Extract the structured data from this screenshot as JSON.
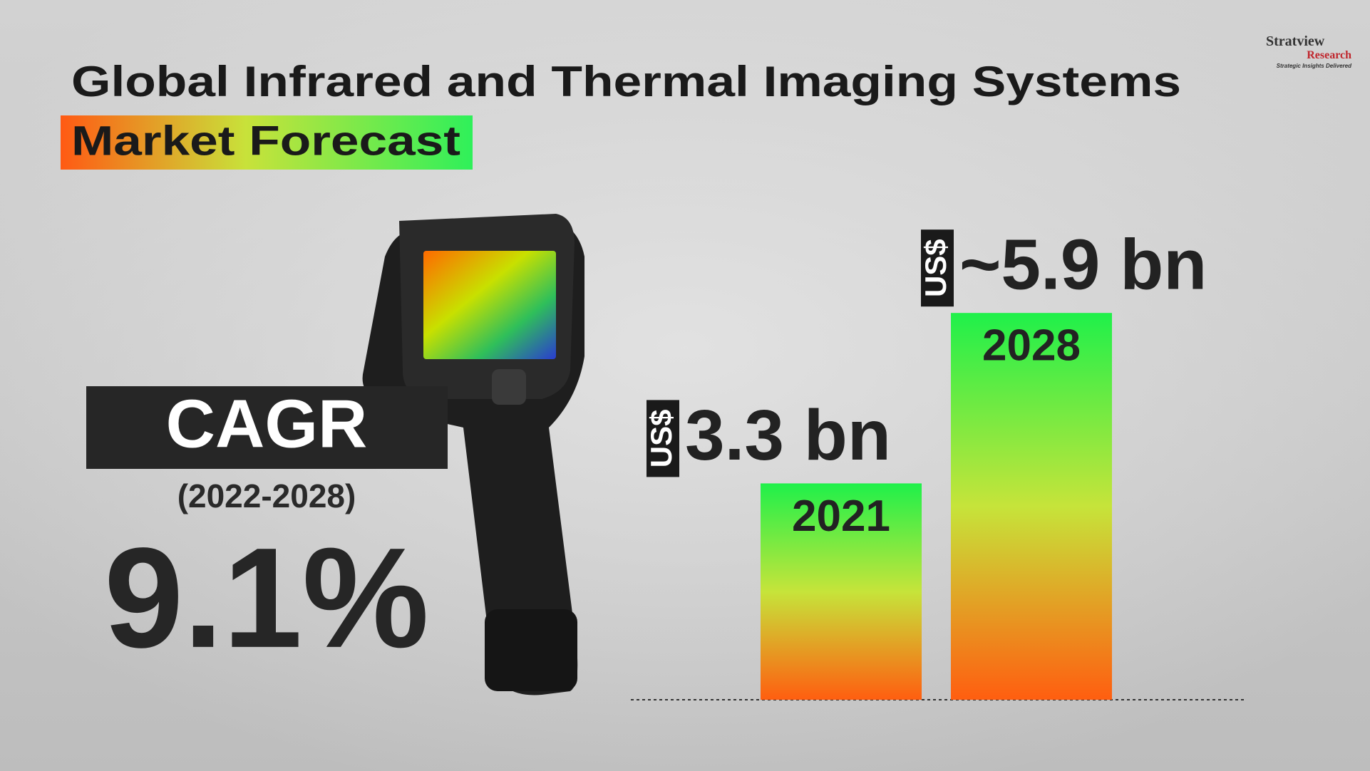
{
  "chart_data": {
    "type": "bar",
    "title": "Global Infrared and Thermal Imaging Systems",
    "subtitle": "Market Forecast",
    "categories": [
      "2021",
      "2028"
    ],
    "values": [
      3.3,
      5.9
    ],
    "currency_labels": [
      "US$",
      "US$"
    ],
    "value_labels": [
      "3.3 bn",
      "~5.9 bn"
    ],
    "cagr": {
      "label": "CAGR",
      "period": "(2022-2028)",
      "value": 9.1,
      "value_label": "9.1%"
    }
  },
  "logo": {
    "name": "Stratview",
    "sub": "Research",
    "tagline": "Strategic Insights Delivered"
  }
}
